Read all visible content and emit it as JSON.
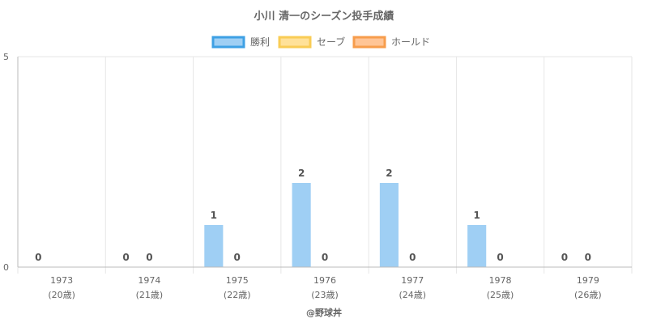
{
  "chart_data": {
    "type": "bar",
    "title": "小川 清一のシーズン投手成績",
    "categories": [
      "1973",
      "1974",
      "1975",
      "1976",
      "1977",
      "1978",
      "1979"
    ],
    "category_sublabels": [
      "(20歳)",
      "(21歳)",
      "(22歳)",
      "(23歳)",
      "(24歳)",
      "(25歳)",
      "(26歳)"
    ],
    "ylim": [
      0,
      5
    ],
    "y_ticks": [
      "0",
      "5"
    ],
    "legend_position": "top-center",
    "grid": true,
    "series": [
      {
        "name": "勝利",
        "values": [
          0,
          0,
          1,
          2,
          2,
          1,
          0
        ],
        "labels": [
          "0",
          "0",
          "1",
          "2",
          "2",
          "1",
          "0"
        ],
        "fill": "#9fcff4",
        "stroke": "#3ea0e4"
      },
      {
        "name": "セーブ",
        "values": [
          null,
          0,
          0,
          0,
          0,
          0,
          0
        ],
        "labels": [
          "",
          "0",
          "0",
          "0",
          "0",
          "0",
          "0"
        ],
        "fill": "#ffe199",
        "stroke": "#f9cc55"
      },
      {
        "name": "ホールド",
        "values": [
          null,
          null,
          null,
          null,
          null,
          null,
          null
        ],
        "labels": [
          "",
          "",
          "",
          "",
          "",
          "",
          ""
        ],
        "fill": "#ffc596",
        "stroke": "#f79d4c"
      }
    ],
    "footer": "@野球丼"
  }
}
